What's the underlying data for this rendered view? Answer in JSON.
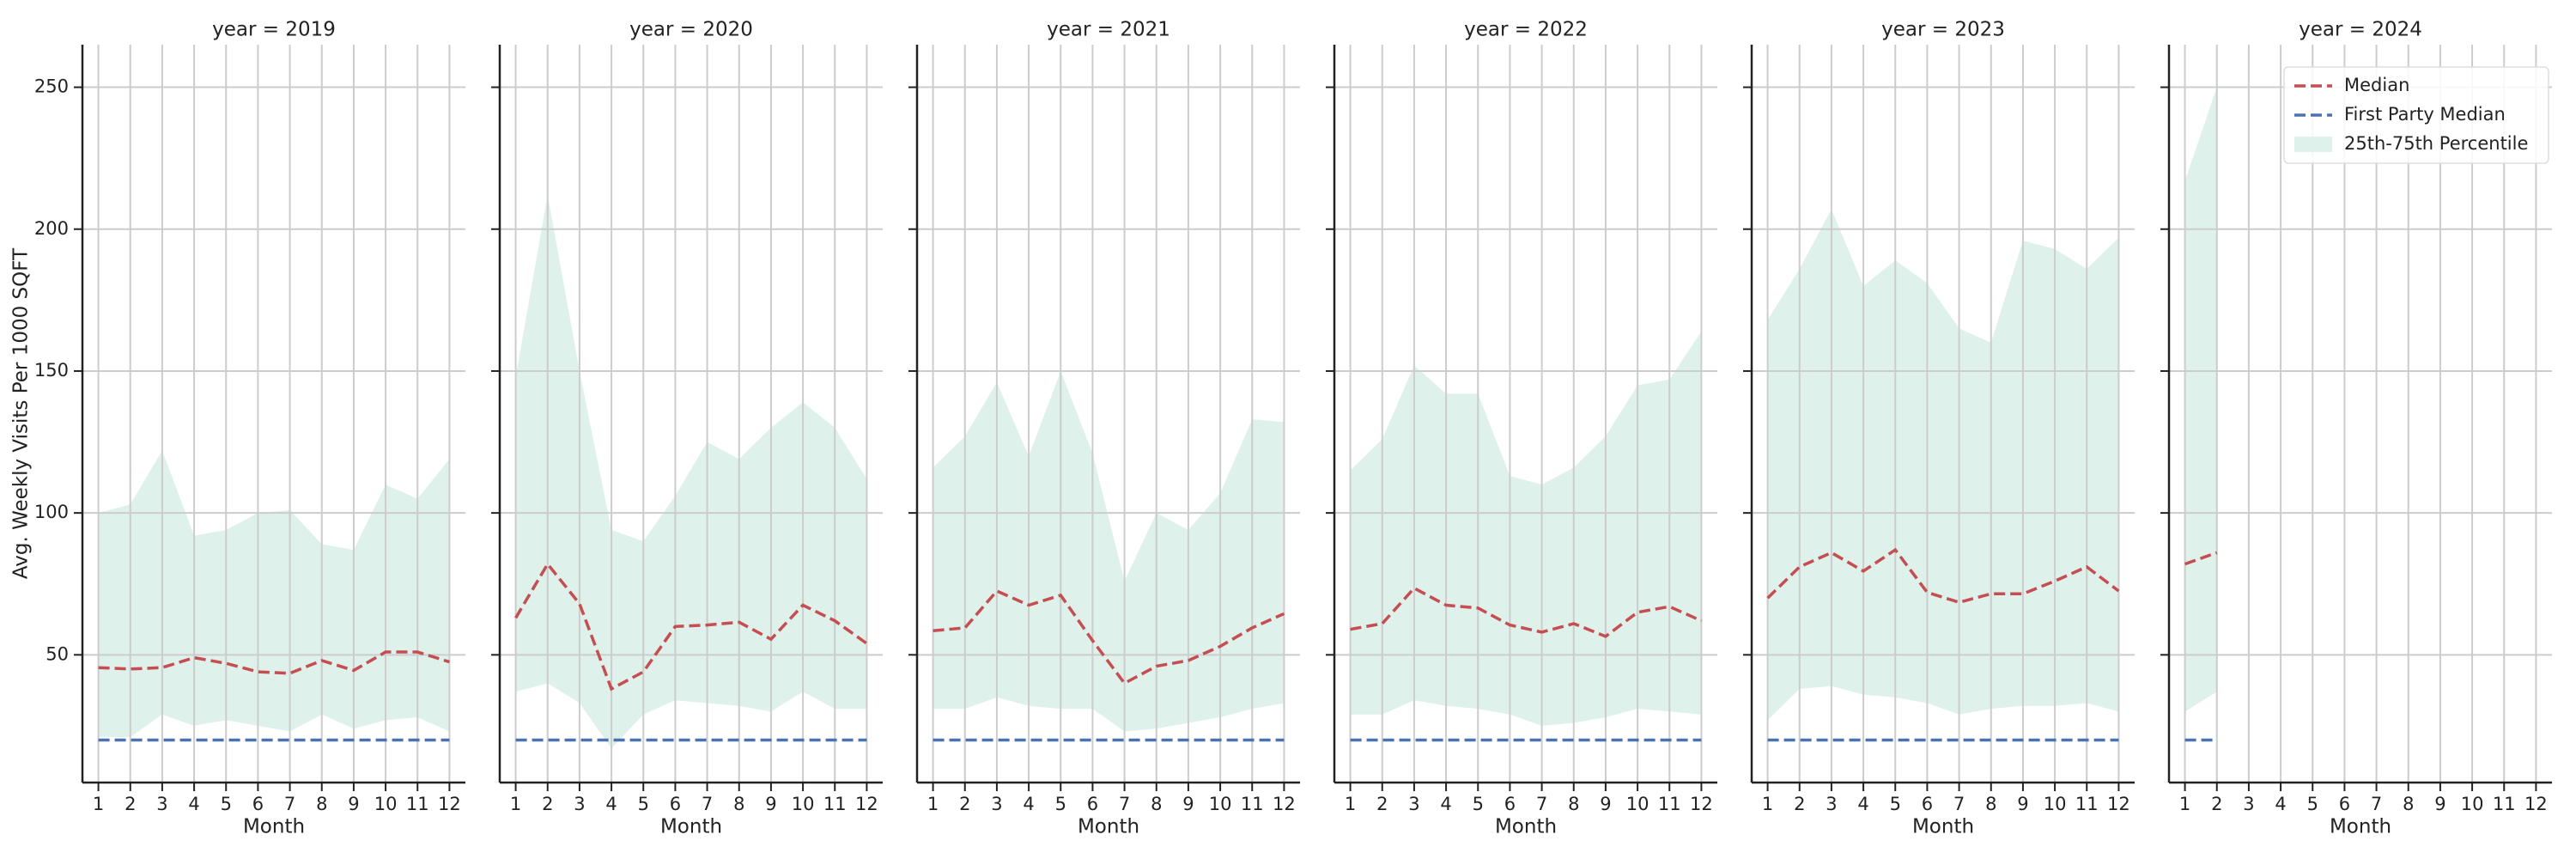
{
  "chart_data": [
    {
      "type": "line",
      "title": "year = 2019",
      "xlabel": "Month",
      "ylabel": "Avg. Weekly Visits Per 1000 SQFT",
      "x": [
        1,
        2,
        3,
        4,
        5,
        6,
        7,
        8,
        9,
        10,
        11,
        12
      ],
      "series": [
        {
          "color": "#c44e52",
          "style": "dashed",
          "values": [
            45.5,
            45,
            45.5,
            49,
            47,
            44,
            43.5,
            48,
            44.5,
            51,
            51,
            47.5
          ]
        },
        {
          "color": "#4c72b0",
          "style": "dashed",
          "values": [
            20,
            20,
            20,
            20,
            20,
            20,
            20,
            20,
            20,
            20,
            20,
            20
          ]
        },
        {
          "color": "#dff1eb",
          "style": "band",
          "lower": [
            21,
            21,
            29,
            25,
            27,
            25,
            23,
            29,
            24,
            27,
            28,
            23
          ],
          "upper": [
            100,
            103,
            122,
            92,
            94,
            100,
            101,
            89,
            87,
            110,
            105,
            119
          ]
        }
      ],
      "xlim": [
        0.5,
        12.5
      ],
      "xticks": [
        1,
        2,
        3,
        4,
        5,
        6,
        7,
        8,
        9,
        10,
        11,
        12
      ],
      "ylim": [
        5,
        265
      ],
      "yticks": [
        50,
        100,
        150,
        200,
        250
      ],
      "show_ytick_labels": true,
      "grid": true
    },
    {
      "type": "line",
      "title": "year = 2020",
      "xlabel": "Month",
      "x": [
        1,
        2,
        3,
        4,
        5,
        6,
        7,
        8,
        9,
        10,
        11,
        12
      ],
      "series": [
        {
          "color": "#c44e52",
          "style": "dashed",
          "values": [
            63,
            82,
            68,
            38,
            44,
            60,
            60.5,
            61.5,
            55.5,
            67.5,
            62,
            54
          ]
        },
        {
          "color": "#4c72b0",
          "style": "dashed",
          "values": [
            20,
            20,
            20,
            20,
            20,
            20,
            20,
            20,
            20,
            20,
            20,
            20
          ]
        },
        {
          "color": "#dff1eb",
          "style": "band",
          "lower": [
            37,
            40,
            33,
            17,
            29,
            34,
            33,
            32,
            30,
            37,
            31,
            31
          ],
          "upper": [
            148,
            212,
            150,
            94,
            90,
            106,
            125,
            119,
            130,
            139,
            130,
            112
          ]
        }
      ],
      "xlim": [
        0.5,
        12.5
      ],
      "xticks": [
        1,
        2,
        3,
        4,
        5,
        6,
        7,
        8,
        9,
        10,
        11,
        12
      ],
      "ylim": [
        5,
        265
      ],
      "yticks": [
        50,
        100,
        150,
        200,
        250
      ],
      "show_ytick_labels": false,
      "grid": true
    },
    {
      "type": "line",
      "title": "year = 2021",
      "xlabel": "Month",
      "x": [
        1,
        2,
        3,
        4,
        5,
        6,
        7,
        8,
        9,
        10,
        11,
        12
      ],
      "series": [
        {
          "color": "#c44e52",
          "style": "dashed",
          "values": [
            58.5,
            59.5,
            72.5,
            67.5,
            71,
            55,
            40,
            46,
            48,
            53,
            59.5,
            64.5
          ]
        },
        {
          "color": "#4c72b0",
          "style": "dashed",
          "values": [
            20,
            20,
            20,
            20,
            20,
            20,
            20,
            20,
            20,
            20,
            20,
            20
          ]
        },
        {
          "color": "#dff1eb",
          "style": "band",
          "lower": [
            31,
            31,
            35,
            32,
            31,
            31,
            23,
            24,
            26,
            28,
            31,
            33
          ],
          "upper": [
            116,
            127,
            146,
            120,
            150,
            121,
            76,
            100,
            94,
            107,
            133,
            132
          ]
        }
      ],
      "xlim": [
        0.5,
        12.5
      ],
      "xticks": [
        1,
        2,
        3,
        4,
        5,
        6,
        7,
        8,
        9,
        10,
        11,
        12
      ],
      "ylim": [
        5,
        265
      ],
      "yticks": [
        50,
        100,
        150,
        200,
        250
      ],
      "show_ytick_labels": false,
      "grid": true
    },
    {
      "type": "line",
      "title": "year = 2022",
      "xlabel": "Month",
      "x": [
        1,
        2,
        3,
        4,
        5,
        6,
        7,
        8,
        9,
        10,
        11,
        12
      ],
      "series": [
        {
          "color": "#c44e52",
          "style": "dashed",
          "values": [
            59,
            61,
            73.5,
            67.5,
            66.5,
            60.5,
            58,
            61,
            56.5,
            65,
            67,
            62
          ]
        },
        {
          "color": "#4c72b0",
          "style": "dashed",
          "values": [
            20,
            20,
            20,
            20,
            20,
            20,
            20,
            20,
            20,
            20,
            20,
            20
          ]
        },
        {
          "color": "#dff1eb",
          "style": "band",
          "lower": [
            29,
            29,
            34,
            32,
            31,
            29,
            25,
            26,
            28,
            31,
            30,
            29
          ],
          "upper": [
            115,
            126,
            152,
            142,
            142,
            113,
            110,
            116,
            127,
            145,
            147,
            164
          ]
        }
      ],
      "xlim": [
        0.5,
        12.5
      ],
      "xticks": [
        1,
        2,
        3,
        4,
        5,
        6,
        7,
        8,
        9,
        10,
        11,
        12
      ],
      "ylim": [
        5,
        265
      ],
      "yticks": [
        50,
        100,
        150,
        200,
        250
      ],
      "show_ytick_labels": false,
      "grid": true
    },
    {
      "type": "line",
      "title": "year = 2023",
      "xlabel": "Month",
      "x": [
        1,
        2,
        3,
        4,
        5,
        6,
        7,
        8,
        9,
        10,
        11,
        12
      ],
      "series": [
        {
          "color": "#c44e52",
          "style": "dashed",
          "values": [
            70,
            81,
            86,
            79.5,
            87,
            72,
            68.5,
            71.5,
            71.5,
            76,
            81,
            72.5
          ]
        },
        {
          "color": "#4c72b0",
          "style": "dashed",
          "values": [
            20,
            20,
            20,
            20,
            20,
            20,
            20,
            20,
            20,
            20,
            20,
            20
          ]
        },
        {
          "color": "#dff1eb",
          "style": "band",
          "lower": [
            27,
            38,
            39,
            36,
            35,
            33,
            29,
            31,
            32,
            32,
            33,
            30
          ],
          "upper": [
            168,
            186,
            207,
            180,
            189,
            181,
            165,
            160,
            196,
            193,
            186,
            197
          ]
        }
      ],
      "xlim": [
        0.5,
        12.5
      ],
      "xticks": [
        1,
        2,
        3,
        4,
        5,
        6,
        7,
        8,
        9,
        10,
        11,
        12
      ],
      "ylim": [
        5,
        265
      ],
      "yticks": [
        50,
        100,
        150,
        200,
        250
      ],
      "show_ytick_labels": false,
      "grid": true
    },
    {
      "type": "line",
      "title": "year = 2024",
      "xlabel": "Month",
      "x": [
        1,
        2
      ],
      "series": [
        {
          "name": "Median",
          "color": "#c44e52",
          "style": "dashed",
          "values": [
            82,
            86
          ]
        },
        {
          "name": "First Party Median",
          "color": "#4c72b0",
          "style": "dashed",
          "values": [
            20,
            20
          ]
        },
        {
          "name": "25th-75th Percentile",
          "color": "#dff1eb",
          "style": "band",
          "lower": [
            30,
            37
          ],
          "upper": [
            217,
            250
          ]
        }
      ],
      "xlim": [
        0.5,
        12.5
      ],
      "xticks": [
        1,
        2,
        3,
        4,
        5,
        6,
        7,
        8,
        9,
        10,
        11,
        12
      ],
      "ylim": [
        5,
        265
      ],
      "yticks": [
        50,
        100,
        150,
        200,
        250
      ],
      "show_ytick_labels": false,
      "grid": true,
      "legend": "upper right"
    }
  ]
}
